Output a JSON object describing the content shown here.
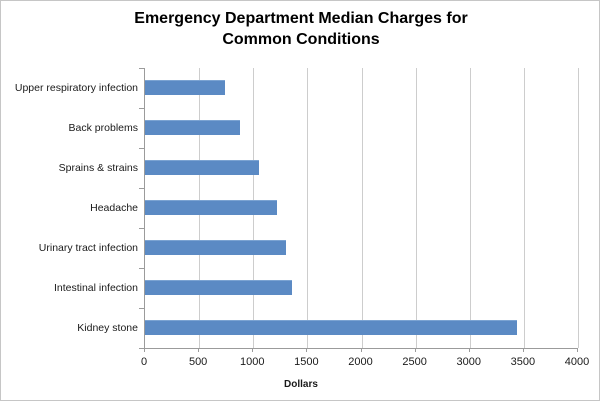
{
  "window": {
    "background_color": "#ffffff",
    "border_color": "#c6c6c6"
  },
  "chart_data": {
    "type": "bar",
    "orientation": "horizontal",
    "title": "Emergency Department Median Charges for Common Conditions",
    "categories": [
      "Upper respiratory infection",
      "Back problems",
      "Sprains & strains",
      "Headache",
      "Urinary tract infection",
      "Intestinal infection",
      "Kidney stone"
    ],
    "values": [
      740,
      877,
      1051,
      1218,
      1306,
      1354,
      3437
    ],
    "xlabel": "Dollars",
    "ylabel": "",
    "xlim": [
      0,
      4000
    ],
    "x_ticks": [
      "0",
      "500",
      "1000",
      "1500",
      "2000",
      "2500",
      "3000",
      "3500",
      "4000"
    ],
    "grid": "vertical-only",
    "legend": "none",
    "bar_color": "#5b8ac4",
    "gridline_color": "#cdcdcd",
    "axis_color": "#9b9b9b",
    "text_color": "#1a1a1a",
    "title_color": "#000000"
  }
}
